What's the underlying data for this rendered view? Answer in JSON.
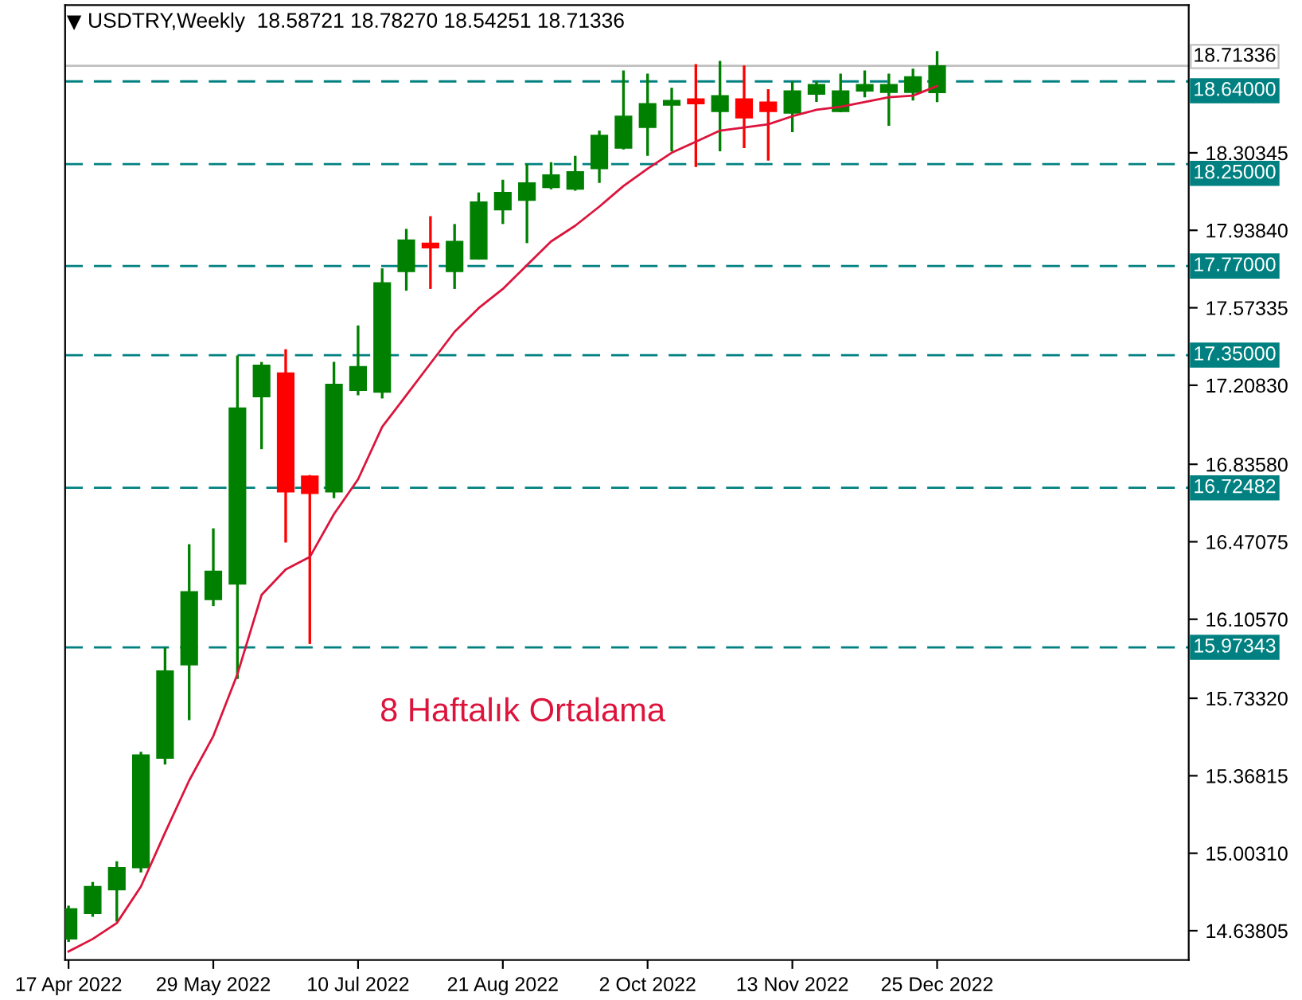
{
  "chart_data": {
    "type": "candlestick",
    "title": "USDTRY,Weekly  18.58721 18.78270 18.54251 18.71336",
    "x": [
      "2022-04-17",
      "2022-04-24",
      "2022-05-01",
      "2022-05-08",
      "2022-05-15",
      "2022-05-22",
      "2022-05-29",
      "2022-06-05",
      "2022-06-12",
      "2022-06-19",
      "2022-06-26",
      "2022-07-03",
      "2022-07-10",
      "2022-07-17",
      "2022-07-24",
      "2022-07-31",
      "2022-08-07",
      "2022-08-14",
      "2022-08-21",
      "2022-08-28",
      "2022-09-04",
      "2022-09-11",
      "2022-09-18",
      "2022-09-25",
      "2022-10-02",
      "2022-10-09",
      "2022-10-16",
      "2022-10-23",
      "2022-10-30",
      "2022-11-06",
      "2022-11-13",
      "2022-11-20",
      "2022-11-27",
      "2022-12-04",
      "2022-12-11",
      "2022-12-18",
      "2022-12-25"
    ],
    "ohlc": [
      [
        14.599,
        14.756,
        14.585,
        14.741
      ],
      [
        14.719,
        14.868,
        14.704,
        14.846
      ],
      [
        14.831,
        14.965,
        14.681,
        14.935
      ],
      [
        14.935,
        15.481,
        14.913,
        15.466
      ],
      [
        15.451,
        15.973,
        15.421,
        15.862
      ],
      [
        15.891,
        16.459,
        15.63,
        16.235
      ],
      [
        16.198,
        16.534,
        16.168,
        16.332
      ],
      [
        16.272,
        17.348,
        15.824,
        17.101
      ],
      [
        17.154,
        17.318,
        16.907,
        17.303
      ],
      [
        17.266,
        17.378,
        16.467,
        16.706
      ],
      [
        16.78,
        16.785,
        15.989,
        16.698
      ],
      [
        16.706,
        17.318,
        16.676,
        17.213
      ],
      [
        17.184,
        17.49,
        17.161,
        17.296
      ],
      [
        17.176,
        17.759,
        17.146,
        17.691
      ],
      [
        17.744,
        17.945,
        17.654,
        17.893
      ],
      [
        17.878,
        18.005,
        17.662,
        17.856
      ],
      [
        17.744,
        17.968,
        17.662,
        17.886
      ],
      [
        17.803,
        18.117,
        17.8,
        18.072
      ],
      [
        18.035,
        18.177,
        17.968,
        18.117
      ],
      [
        18.08,
        18.252,
        17.878,
        18.162
      ],
      [
        18.14,
        18.259,
        18.132,
        18.199
      ],
      [
        18.132,
        18.289,
        18.125,
        18.214
      ],
      [
        18.229,
        18.408,
        18.162,
        18.386
      ],
      [
        18.326,
        18.692,
        18.319,
        18.476
      ],
      [
        18.423,
        18.677,
        18.289,
        18.535
      ],
      [
        18.528,
        18.61,
        18.311,
        18.55
      ],
      [
        18.558,
        18.722,
        18.237,
        18.535
      ],
      [
        18.498,
        18.737,
        18.311,
        18.573
      ],
      [
        18.558,
        18.715,
        18.326,
        18.468
      ],
      [
        18.543,
        18.603,
        18.267,
        18.498
      ],
      [
        18.491,
        18.64,
        18.401,
        18.595
      ],
      [
        18.58,
        18.64,
        18.543,
        18.625
      ],
      [
        18.498,
        18.677,
        18.495,
        18.595
      ],
      [
        18.595,
        18.692,
        18.565,
        18.625
      ],
      [
        18.588,
        18.677,
        18.431,
        18.625
      ],
      [
        18.588,
        18.7,
        18.55,
        18.662
      ],
      [
        18.58721,
        18.7827,
        18.54251,
        18.71336
      ]
    ],
    "colors": [
      "#008000",
      "#008000",
      "#008000",
      "#008000",
      "#008000",
      "#008000",
      "#008000",
      "#008000",
      "#008000",
      "#ff0000",
      "#ff0000",
      "#008000",
      "#008000",
      "#008000",
      "#008000",
      "#ff0000",
      "#008000",
      "#008000",
      "#008000",
      "#008000",
      "#008000",
      "#008000",
      "#008000",
      "#008000",
      "#008000",
      "#008000",
      "#ff0000",
      "#008000",
      "#ff0000",
      "#ff0000",
      "#008000",
      "#008000",
      "#008000",
      "#008000",
      "#008000",
      "#008000",
      "#008000"
    ],
    "series": [
      {
        "type": "line",
        "name": "8 Haftalık Ortalama",
        "color": "#dc143c",
        "values": [
          14.54,
          14.599,
          14.674,
          14.846,
          15.1,
          15.346,
          15.555,
          15.847,
          16.22,
          16.34,
          16.399,
          16.601,
          16.765,
          17.012,
          17.161,
          17.311,
          17.46,
          17.572,
          17.662,
          17.774,
          17.886,
          17.96,
          18.05,
          18.147,
          18.229,
          18.304,
          18.356,
          18.408,
          18.423,
          18.438,
          18.476,
          18.506,
          18.52,
          18.543,
          18.565,
          18.573,
          18.618
        ]
      }
    ],
    "xlim": [
      "2022-04-16",
      "2023-03-08"
    ],
    "xticks": [
      {
        "value": "2022-04-17",
        "label": "17 Apr 2022"
      },
      {
        "value": "2022-05-29",
        "label": "29 May 2022"
      },
      {
        "value": "2022-07-10",
        "label": "10 Jul 2022"
      },
      {
        "value": "2022-08-21",
        "label": "21 Aug 2022"
      },
      {
        "value": "2022-10-02",
        "label": "2 Oct 2022"
      },
      {
        "value": "2022-11-13",
        "label": "13 Nov 2022"
      },
      {
        "value": "2022-12-25",
        "label": "25 Dec 2022"
      }
    ],
    "ylim": [
      14.5,
      19.0
    ],
    "yticks": [
      {
        "value": 14.63805,
        "label": "14.63805"
      },
      {
        "value": 15.0031,
        "label": "15.00310"
      },
      {
        "value": 15.36815,
        "label": "15.36815"
      },
      {
        "value": 15.7332,
        "label": "15.73320"
      },
      {
        "value": 16.1057,
        "label": "16.10570"
      },
      {
        "value": 16.47075,
        "label": "16.47075"
      },
      {
        "value": 16.8358,
        "label": "16.83580"
      },
      {
        "value": 17.2083,
        "label": "17.20830"
      },
      {
        "value": 17.57335,
        "label": "17.57335"
      },
      {
        "value": 17.9384,
        "label": "17.93840"
      },
      {
        "value": 18.30345,
        "label": "18.30345"
      }
    ],
    "ref_lines": [
      {
        "axis": "y",
        "value": 18.71336,
        "label": "18.71336",
        "color": "#c0c0c0",
        "line_style": "solid"
      },
      {
        "axis": "y",
        "value": 18.64,
        "label": "18.64000",
        "color": "#008080",
        "line_style": "dashed"
      },
      {
        "axis": "y",
        "value": 18.25,
        "label": "18.25000",
        "color": "#008080",
        "line_style": "dashed"
      },
      {
        "axis": "y",
        "value": 17.77,
        "label": "17.77000",
        "color": "#008080",
        "line_style": "dashed"
      },
      {
        "axis": "y",
        "value": 17.35,
        "label": "17.35000",
        "color": "#008080",
        "line_style": "dashed"
      },
      {
        "axis": "y",
        "value": 16.72482,
        "label": "16.72482",
        "color": "#008080",
        "line_style": "dashed"
      },
      {
        "axis": "y",
        "value": 15.97343,
        "label": "15.97343",
        "color": "#008080",
        "line_style": "dashed"
      }
    ],
    "grid": false,
    "legend": false
  }
}
